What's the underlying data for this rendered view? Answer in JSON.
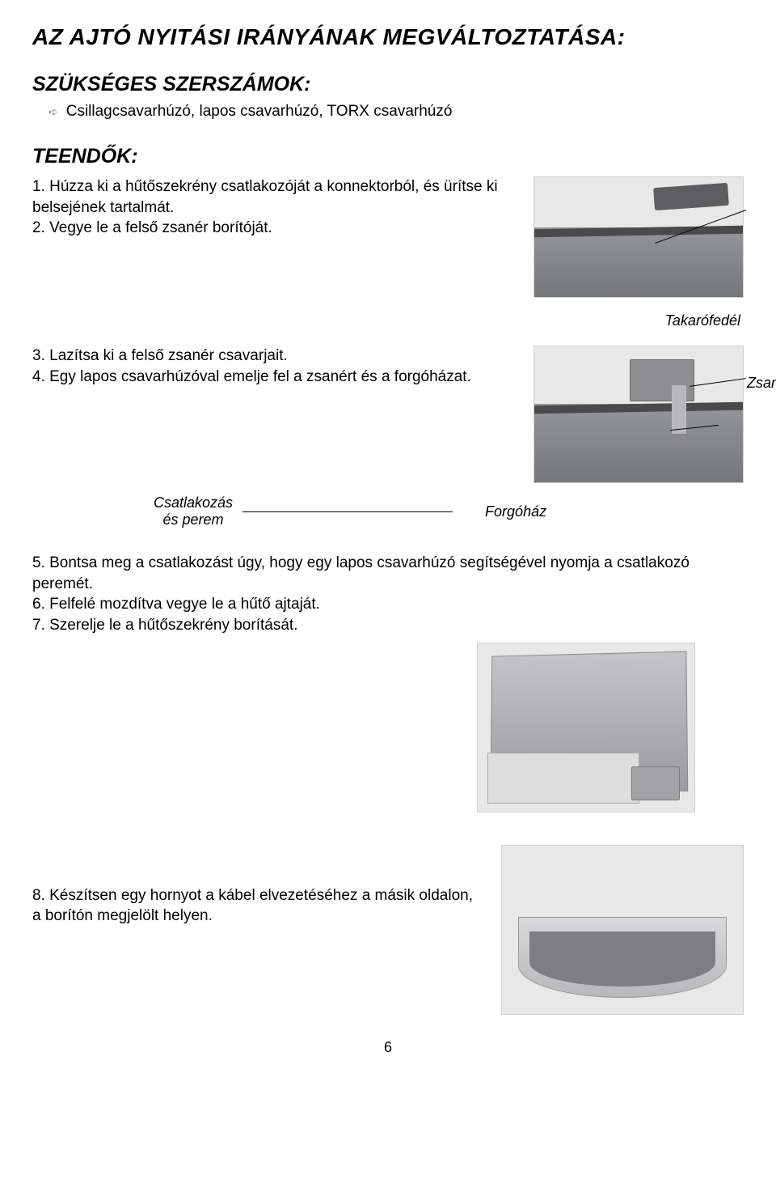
{
  "title": "AZ AJTÓ NYITÁSI IRÁNYÁNAK MEGVÁLTOZTATÁSA:",
  "tools_heading": "SZÜKSÉGES SZERSZÁMOK:",
  "tools_list": "Csillagcsavarhúzó, lapos csavarhúzó, TORX csavarhúzó",
  "steps_heading": "TEENDŐK:",
  "step1": "1.  Húzza ki a hűtőszekrény csatlakozóját a konnektorból, és ürítse ki belsejének tartalmát.",
  "step2": "2.  Vegye le a felső zsanér borítóját.",
  "label_cover": "Takarófedél",
  "step3": "3.  Lazítsa ki a felső zsanér csavarjait.",
  "step4": "4.  Egy lapos csavarhúzóval emelje fel a zsanért és a forgóházat.",
  "label_hinge": "Zsanér",
  "callout_connector_line1": "Csatlakozás",
  "callout_connector_line2": "és perem",
  "label_housing": "Forgóház",
  "step5": "5.  Bontsa meg a csatlakozást úgy, hogy egy lapos csavarhúzó segítségével nyomja a csatlakozó peremét.",
  "step6": "6.  Felfelé mozdítva vegye le a hűtő ajtaját.",
  "step7": "7.  Szerelje le a hűtőszekrény borítását.",
  "step8": "8.  Készítsen egy hornyot a kábel elvezetéséhez a másik oldalon, a borítón megjelölt helyen.",
  "page_number": "6",
  "colors": {
    "text": "#000000",
    "bg": "#ffffff",
    "fig_bg": "#e8e8e8",
    "fig_border": "#d0d0d0"
  }
}
